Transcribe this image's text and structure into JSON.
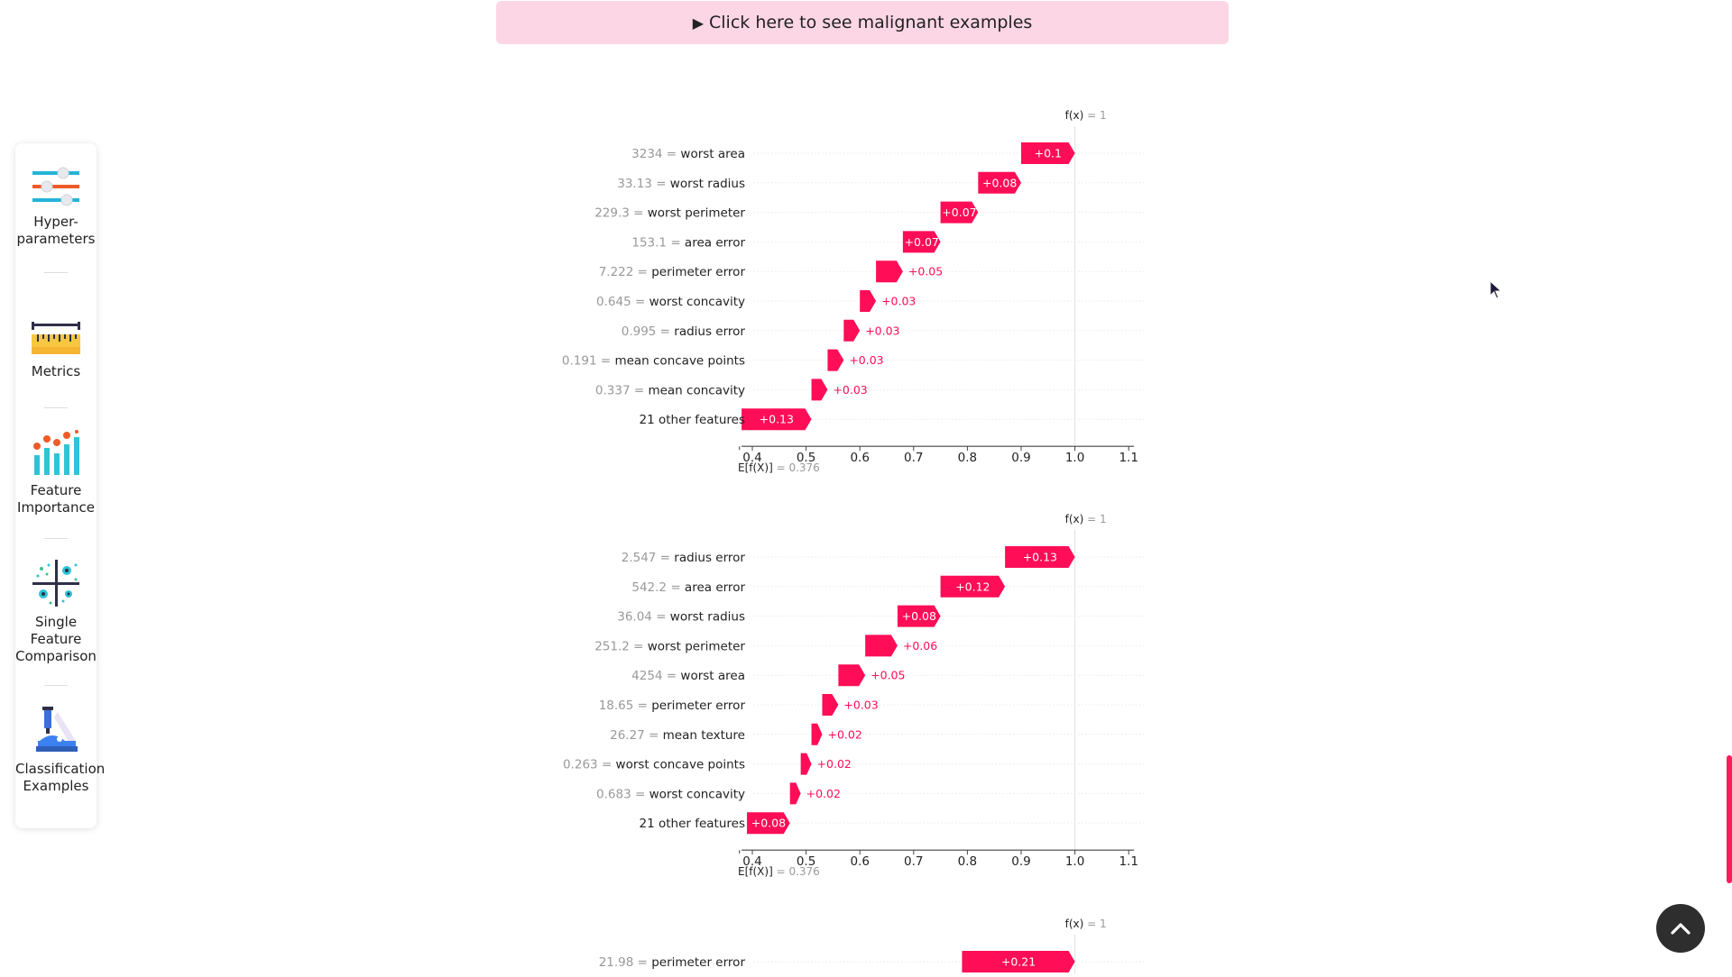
{
  "banner": {
    "label": "Click here to see malignant examples",
    "icon": "triangle-right-icon"
  },
  "sidebar": {
    "items": [
      {
        "label": "Hyper-\nparameters",
        "icon": "sliders-icon"
      },
      {
        "label": "Metrics",
        "icon": "ruler-icon"
      },
      {
        "label": "Feature\nImportance",
        "icon": "bar-chart-icon"
      },
      {
        "label": "Single\nFeature\nComparison",
        "icon": "scatter-quadrant-icon"
      },
      {
        "label": "Classification\nExamples",
        "icon": "microscope-icon"
      }
    ]
  },
  "colors": {
    "bar": "#ff0d57",
    "banner": "#fcd6e4",
    "axis_text": "#222222",
    "muted_text": "#999999"
  },
  "chart_data": [
    {
      "type": "bar",
      "subtype": "waterfall",
      "fx_label": "f(x) = 1",
      "ex_label": "E[f(X)] = 0.376",
      "base": 0.376,
      "fx": 1,
      "xticks": [
        "0.4",
        "0.5",
        "0.6",
        "0.7",
        "0.8",
        "0.9",
        "1.0",
        "1.1"
      ],
      "xlim": [
        0.38,
        1.11
      ],
      "rows": [
        {
          "value": "3234",
          "feature": "worst area",
          "contribution": 0.1,
          "label": "+0.1"
        },
        {
          "value": "33.13",
          "feature": "worst radius",
          "contribution": 0.08,
          "label": "+0.08"
        },
        {
          "value": "229.3",
          "feature": "worst perimeter",
          "contribution": 0.07,
          "label": "+0.07"
        },
        {
          "value": "153.1",
          "feature": "area error",
          "contribution": 0.07,
          "label": "+0.07"
        },
        {
          "value": "7.222",
          "feature": "perimeter error",
          "contribution": 0.05,
          "label": "+0.05"
        },
        {
          "value": "0.645",
          "feature": "worst concavity",
          "contribution": 0.03,
          "label": "+0.03"
        },
        {
          "value": "0.995",
          "feature": "radius error",
          "contribution": 0.03,
          "label": "+0.03"
        },
        {
          "value": "0.191",
          "feature": "mean concave points",
          "contribution": 0.03,
          "label": "+0.03"
        },
        {
          "value": "0.337",
          "feature": "mean concavity",
          "contribution": 0.03,
          "label": "+0.03"
        },
        {
          "value": "",
          "feature": "21 other features",
          "contribution": 0.13,
          "label": "+0.13"
        }
      ]
    },
    {
      "type": "bar",
      "subtype": "waterfall",
      "fx_label": "f(x) = 1",
      "ex_label": "E[f(X)] = 0.376",
      "base": 0.376,
      "fx": 1,
      "xticks": [
        "0.4",
        "0.5",
        "0.6",
        "0.7",
        "0.8",
        "0.9",
        "1.0",
        "1.1"
      ],
      "xlim": [
        0.38,
        1.11
      ],
      "rows": [
        {
          "value": "2.547",
          "feature": "radius error",
          "contribution": 0.13,
          "label": "+0.13"
        },
        {
          "value": "542.2",
          "feature": "area error",
          "contribution": 0.12,
          "label": "+0.12"
        },
        {
          "value": "36.04",
          "feature": "worst radius",
          "contribution": 0.08,
          "label": "+0.08"
        },
        {
          "value": "251.2",
          "feature": "worst perimeter",
          "contribution": 0.06,
          "label": "+0.06"
        },
        {
          "value": "4254",
          "feature": "worst area",
          "contribution": 0.05,
          "label": "+0.05"
        },
        {
          "value": "18.65",
          "feature": "perimeter error",
          "contribution": 0.03,
          "label": "+0.03"
        },
        {
          "value": "26.27",
          "feature": "mean texture",
          "contribution": 0.02,
          "label": "+0.02"
        },
        {
          "value": "0.263",
          "feature": "worst concave points",
          "contribution": 0.02,
          "label": "+0.02"
        },
        {
          "value": "0.683",
          "feature": "worst concavity",
          "contribution": 0.02,
          "label": "+0.02"
        },
        {
          "value": "",
          "feature": "21 other features",
          "contribution": 0.08,
          "label": "+0.08"
        }
      ]
    },
    {
      "type": "bar",
      "subtype": "waterfall",
      "fx_label": "f(x) = 1",
      "fx": 1,
      "xlim": [
        0.38,
        1.11
      ],
      "rows": [
        {
          "value": "21.98",
          "feature": "perimeter error",
          "contribution": 0.21,
          "label": "+0.21"
        }
      ]
    }
  ]
}
